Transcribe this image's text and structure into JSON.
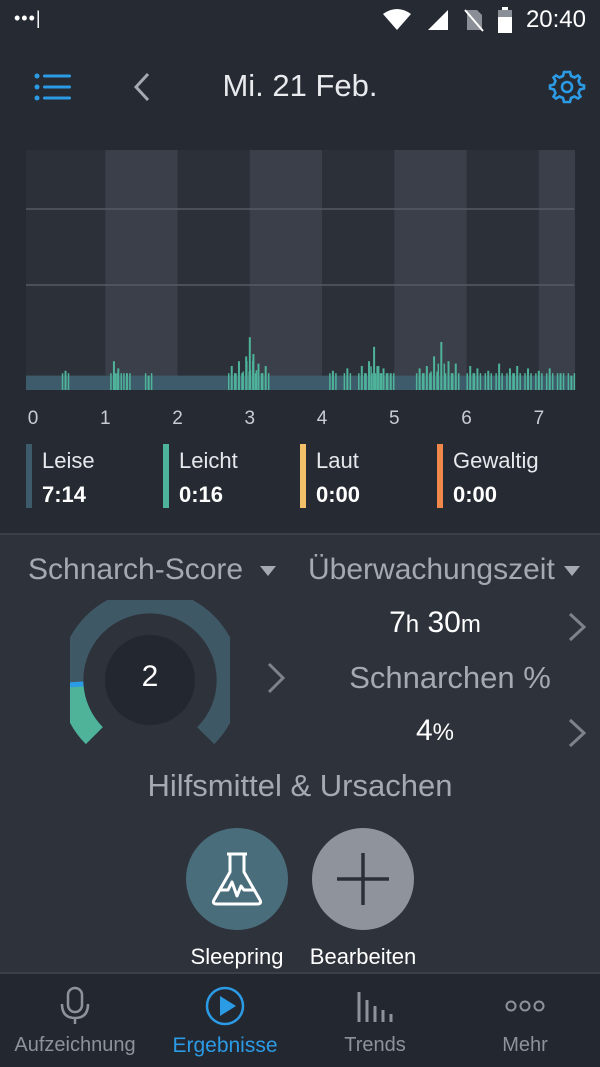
{
  "status_bar": {
    "time": "20:40",
    "signal_dots": "•••|"
  },
  "header": {
    "date": "Mi. 21 Feb."
  },
  "chart_data": {
    "type": "bar",
    "x_ticks": [
      "0",
      "1",
      "2",
      "3",
      "4",
      "5",
      "6",
      "7"
    ],
    "xlim": [
      0,
      7.5
    ],
    "bands": [
      [
        1,
        2
      ],
      [
        3,
        4
      ],
      [
        5,
        6
      ],
      [
        7,
        7.5
      ]
    ],
    "baseline": 0.06,
    "bursts": [
      [
        0.45,
        0.08
      ],
      [
        1.12,
        0.12
      ],
      [
        1.18,
        0.09
      ],
      [
        1.3,
        0.07
      ],
      [
        1.6,
        0.06
      ],
      [
        2.75,
        0.1
      ],
      [
        2.85,
        0.12
      ],
      [
        2.95,
        0.14
      ],
      [
        3.0,
        0.22
      ],
      [
        3.05,
        0.15
      ],
      [
        3.12,
        0.11
      ],
      [
        3.22,
        0.1
      ],
      [
        4.15,
        0.08
      ],
      [
        4.35,
        0.09
      ],
      [
        4.55,
        0.1
      ],
      [
        4.65,
        0.12
      ],
      [
        4.72,
        0.18
      ],
      [
        4.78,
        0.1
      ],
      [
        4.85,
        0.09
      ],
      [
        4.95,
        0.07
      ],
      [
        5.35,
        0.09
      ],
      [
        5.45,
        0.1
      ],
      [
        5.55,
        0.14
      ],
      [
        5.65,
        0.2
      ],
      [
        5.75,
        0.12
      ],
      [
        5.85,
        0.11
      ],
      [
        6.05,
        0.1
      ],
      [
        6.15,
        0.09
      ],
      [
        6.3,
        0.08
      ],
      [
        6.45,
        0.11
      ],
      [
        6.6,
        0.09
      ],
      [
        6.7,
        0.1
      ],
      [
        6.85,
        0.09
      ],
      [
        7.0,
        0.08
      ],
      [
        7.15,
        0.09
      ],
      [
        7.3,
        0.07
      ],
      [
        7.45,
        0.06
      ]
    ]
  },
  "legend": [
    {
      "label": "Leise",
      "value": "7:14",
      "color": "#3d5b6a"
    },
    {
      "label": "Leicht",
      "value": "0:16",
      "color": "#4fb39a"
    },
    {
      "label": "Laut",
      "value": "0:00",
      "color": "#f3c06a"
    },
    {
      "label": "Gewaltig",
      "value": "0:00",
      "color": "#f0884a"
    }
  ],
  "score": {
    "title": "Schnarch-Score",
    "value": "2",
    "fraction": 0.02
  },
  "monitoring": {
    "title": "Überwachungszeit",
    "hours": "7",
    "hours_unit": "h",
    "minutes": "30",
    "minutes_unit": "m"
  },
  "snoring": {
    "title": "Schnarchen %",
    "value": "4",
    "unit": "%"
  },
  "remedies": {
    "title": "Hilfsmittel & Ursachen",
    "items": [
      {
        "label": "Sleepring",
        "icon": "flask-icon"
      },
      {
        "label": "Bearbeiten",
        "icon": "plus-icon"
      }
    ]
  },
  "nav": [
    {
      "label": "Aufzeichnung",
      "icon": "microphone-icon",
      "active": false
    },
    {
      "label": "Ergebnisse",
      "icon": "play-icon",
      "active": true
    },
    {
      "label": "Trends",
      "icon": "bars-icon",
      "active": false
    },
    {
      "label": "Mehr",
      "icon": "more-dots-icon",
      "active": false
    }
  ],
  "colors": {
    "accent": "#2c9be6",
    "light_snore": "#4fb39a",
    "quiet": "#3d5b6a"
  }
}
